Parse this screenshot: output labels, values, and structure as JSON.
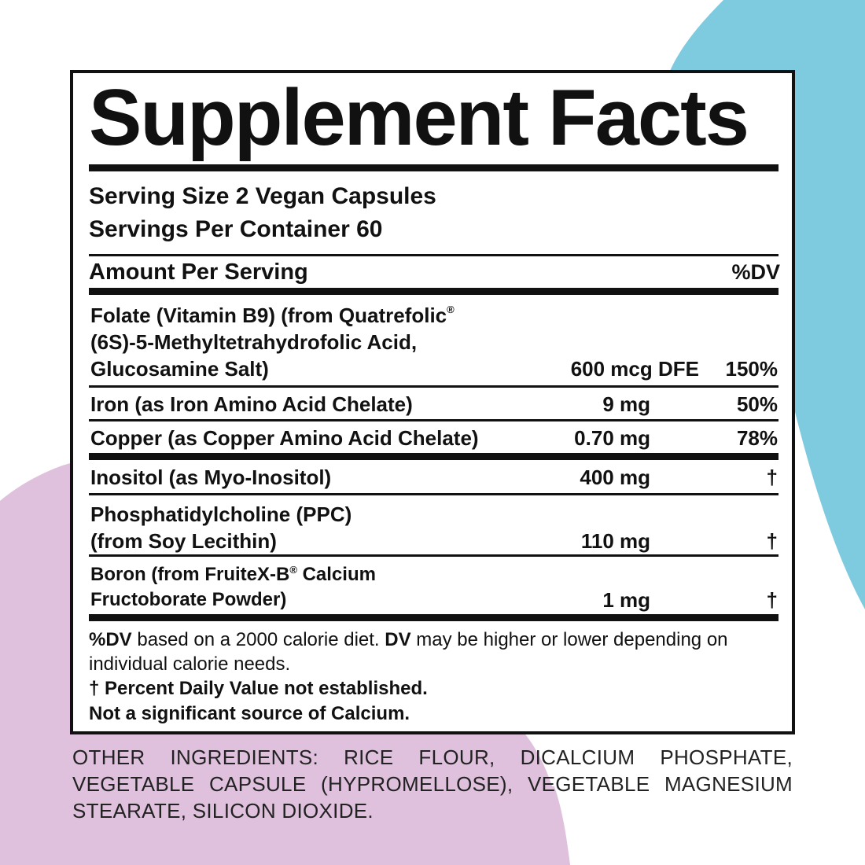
{
  "colors": {
    "accent_blue": "#7ecbe0",
    "accent_pink": "#dfc1dd",
    "ink": "#111111"
  },
  "title": "Supplement Facts",
  "serving_size": "Serving Size 2 Vegan Capsules",
  "servings_per_container": "Servings Per Container 60",
  "header": {
    "amount": "Amount Per Serving",
    "dv": "%DV"
  },
  "rows": [
    {
      "name_lines": [
        "Folate (Vitamin B9) (from Quatrefolic",
        "(6S)-5-Methyltetrahydrofolic Acid,",
        "Glucosamine Salt)"
      ],
      "reg": "®",
      "amount": "600 mcg DFE",
      "dv": "150%"
    },
    {
      "name_lines": [
        "Iron (as Iron Amino Acid Chelate)"
      ],
      "amount": "9 mg",
      "dv": "50%"
    },
    {
      "name_lines": [
        "Copper (as Copper Amino Acid Chelate)"
      ],
      "amount": "0.70 mg",
      "dv": "78%"
    },
    {
      "name_lines": [
        "Inositol (as Myo-Inositol)"
      ],
      "amount": "400 mg",
      "dv": "†"
    },
    {
      "name_lines": [
        "Phosphatidylcholine (PPC)",
        "(from Soy Lecithin)"
      ],
      "amount": "110 mg",
      "dv": "†"
    },
    {
      "name_lines": [
        "Boron (from FruiteX-B",
        " Calcium",
        "Fructoborate Powder)"
      ],
      "reg": "®",
      "amount": "1 mg",
      "dv": "†"
    }
  ],
  "footnotes": {
    "dv_bold_1": "%DV",
    "dv_text_1": " based on a 2000 calorie diet. ",
    "dv_bold_2": "DV",
    "dv_text_2": " may be higher or lower depending on individual calorie needs.",
    "dagger": "† Percent Daily Value not established.",
    "calcium": "Not a significant source of Calcium."
  },
  "other_ingredients": "OTHER INGREDIENTS: RICE FLOUR, DICALCIUM PHOSPHATE, VEGETABLE CAPSULE (HYPROMELLOSE), VEGETABLE MAGNESIUM STEARATE, SILICON DIOXIDE."
}
